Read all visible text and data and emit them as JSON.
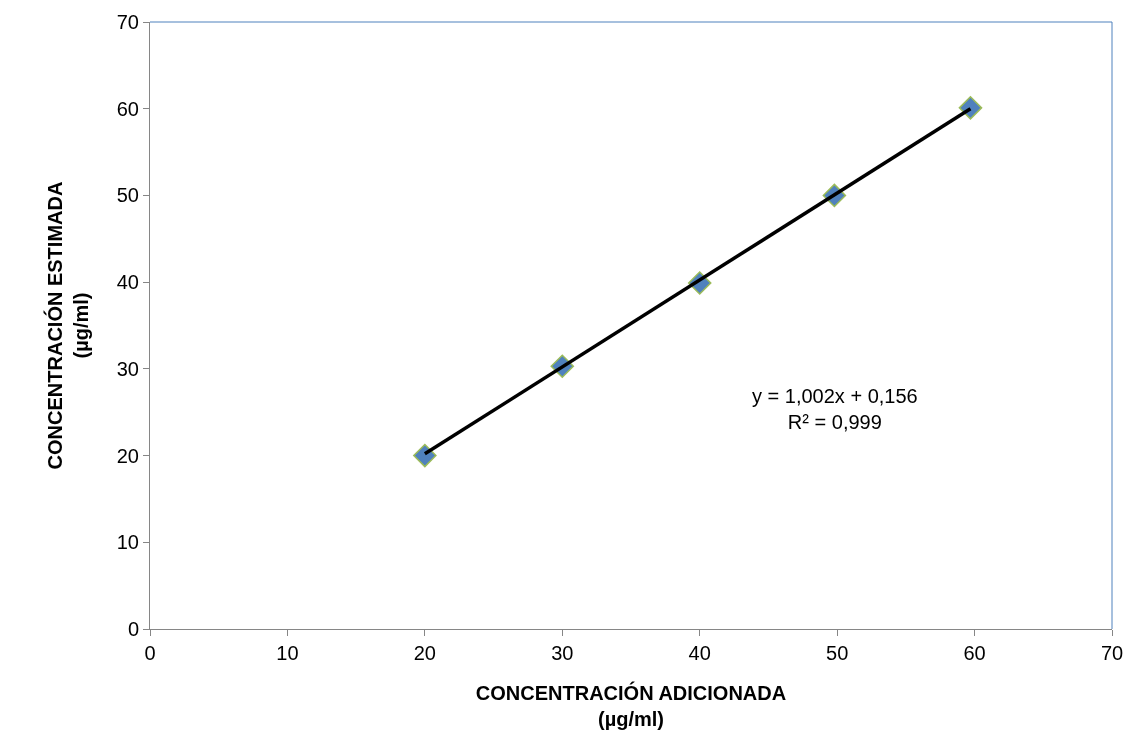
{
  "chart_data": {
    "type": "scatter",
    "xlabel": "CONCENTRACIÓN ADICIONADA\n(µg/ml)",
    "ylabel": "CONCENTRACIÓN ESTIMADA\n(µg/ml)",
    "xlim": [
      0,
      70
    ],
    "xticks": [
      0,
      10,
      20,
      30,
      40,
      50,
      60,
      70
    ],
    "ylim": [
      0,
      70
    ],
    "yticks": [
      0,
      10,
      20,
      30,
      40,
      50,
      60,
      70
    ],
    "grid": false,
    "series": [
      {
        "marker": "diamond",
        "color": "#4f81bd",
        "x": [
          20,
          30,
          40,
          49.8,
          59.7
        ],
        "values": [
          20,
          30.3,
          39.9,
          50,
          60.1
        ]
      },
      {
        "type": "line",
        "marker": "none",
        "line_style": "solid",
        "color": "#000000",
        "x": [
          20,
          59.7
        ],
        "values": [
          20.2,
          60
        ]
      }
    ],
    "annotations": [
      "y = 1,002x + 0,156\nR² = 0,999"
    ]
  }
}
